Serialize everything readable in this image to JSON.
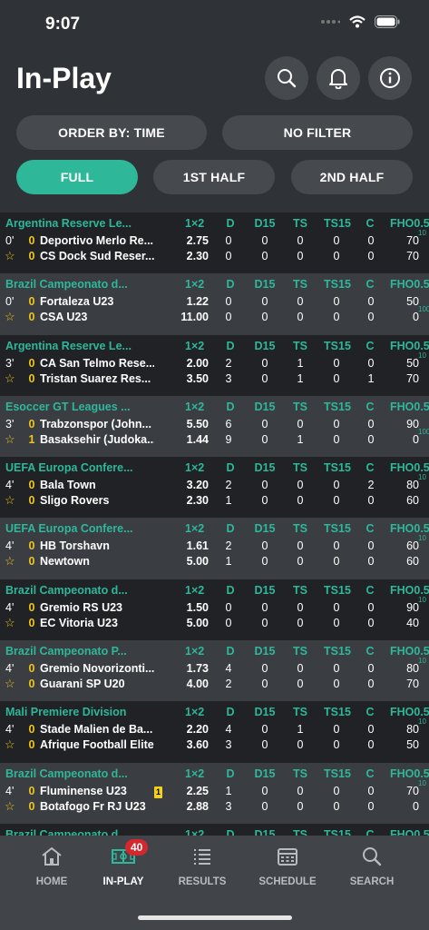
{
  "status": {
    "time": "9:07"
  },
  "header": {
    "title": "In-Play",
    "icons": [
      "search-icon",
      "bell-icon",
      "info-icon"
    ]
  },
  "filters": {
    "order_by": "ORDER BY: TIME",
    "filter": "NO FILTER"
  },
  "periods": [
    {
      "label": "FULL",
      "active": true
    },
    {
      "label": "1ST HALF",
      "active": false
    },
    {
      "label": "2ND HALF",
      "active": false
    }
  ],
  "columns": {
    "odds": "1×2",
    "d": "D",
    "d15": "D15",
    "ts": "TS",
    "ts15": "TS15",
    "c": "C",
    "fho": "FHO0.5"
  },
  "matches": [
    {
      "league": "Argentina Reserve Le...",
      "minute": "0'",
      "sup1": "10",
      "sup2": "",
      "t1": {
        "score": "0",
        "name": "Deportivo Merlo Re...",
        "odd": "2.75",
        "d": "0",
        "d15": "0",
        "ts": "0",
        "ts15": "0",
        "c": "0",
        "fho": "70"
      },
      "t2": {
        "score": "0",
        "name": "CS Dock Sud Reser...",
        "odd": "2.30",
        "d": "0",
        "d15": "0",
        "ts": "0",
        "ts15": "0",
        "c": "0",
        "fho": "70"
      }
    },
    {
      "league": "Brazil Campeonato d...",
      "minute": "0'",
      "sup1": "",
      "sup2": "100",
      "t1": {
        "score": "0",
        "name": "Fortaleza U23",
        "odd": "1.22",
        "d": "0",
        "d15": "0",
        "ts": "0",
        "ts15": "0",
        "c": "0",
        "fho": "50"
      },
      "t2": {
        "score": "0",
        "name": "CSA U23",
        "odd": "11.00",
        "d": "0",
        "d15": "0",
        "ts": "0",
        "ts15": "0",
        "c": "0",
        "fho": "0"
      }
    },
    {
      "league": "Argentina Reserve Le...",
      "minute": "3'",
      "sup1": "10",
      "sup2": "",
      "t1": {
        "score": "0",
        "name": "CA San Telmo Rese...",
        "odd": "2.00",
        "d": "2",
        "d15": "0",
        "ts": "1",
        "ts15": "0",
        "c": "0",
        "fho": "50"
      },
      "t2": {
        "score": "0",
        "name": "Tristan Suarez Res...",
        "odd": "3.50",
        "d": "3",
        "d15": "0",
        "ts": "1",
        "ts15": "0",
        "c": "1",
        "fho": "70"
      }
    },
    {
      "league": "Esoccer GT Leagues ...",
      "minute": "3'",
      "sup1": "",
      "sup2": "100",
      "t1": {
        "score": "0",
        "name": "Trabzonspor (John...",
        "odd": "5.50",
        "d": "6",
        "d15": "0",
        "ts": "0",
        "ts15": "0",
        "c": "0",
        "fho": "90"
      },
      "t2": {
        "score": "1",
        "name": "Basaksehir (Judoka...",
        "odd": "1.44",
        "d": "9",
        "d15": "0",
        "ts": "1",
        "ts15": "0",
        "c": "0",
        "fho": "0"
      }
    },
    {
      "league": "UEFA Europa Confere...",
      "minute": "4'",
      "sup1": "10",
      "sup2": "",
      "t1": {
        "score": "0",
        "name": "Bala Town",
        "odd": "3.20",
        "d": "2",
        "d15": "0",
        "ts": "0",
        "ts15": "0",
        "c": "2",
        "fho": "80"
      },
      "t2": {
        "score": "0",
        "name": "Sligo Rovers",
        "odd": "2.30",
        "d": "1",
        "d15": "0",
        "ts": "0",
        "ts15": "0",
        "c": "0",
        "fho": "60"
      }
    },
    {
      "league": "UEFA Europa Confere...",
      "minute": "4'",
      "sup1": "10",
      "sup2": "",
      "t1": {
        "score": "0",
        "name": "HB Torshavn",
        "odd": "1.61",
        "d": "2",
        "d15": "0",
        "ts": "0",
        "ts15": "0",
        "c": "0",
        "fho": "60"
      },
      "t2": {
        "score": "0",
        "name": "Newtown",
        "odd": "5.00",
        "d": "1",
        "d15": "0",
        "ts": "0",
        "ts15": "0",
        "c": "0",
        "fho": "60"
      }
    },
    {
      "league": "Brazil Campeonato d...",
      "minute": "4'",
      "sup1": "10",
      "sup2": "",
      "t1": {
        "score": "0",
        "name": "Gremio RS U23",
        "odd": "1.50",
        "d": "0",
        "d15": "0",
        "ts": "0",
        "ts15": "0",
        "c": "0",
        "fho": "90"
      },
      "t2": {
        "score": "0",
        "name": "EC Vitoria U23",
        "odd": "5.00",
        "d": "0",
        "d15": "0",
        "ts": "0",
        "ts15": "0",
        "c": "0",
        "fho": "40"
      }
    },
    {
      "league": "Brazil Campeonato P...",
      "minute": "4'",
      "sup1": "10",
      "sup2": "",
      "t1": {
        "score": "0",
        "name": "Gremio Novorizonti...",
        "odd": "1.73",
        "d": "4",
        "d15": "0",
        "ts": "0",
        "ts15": "0",
        "c": "0",
        "fho": "80"
      },
      "t2": {
        "score": "0",
        "name": "Guarani SP U20",
        "odd": "4.00",
        "d": "2",
        "d15": "0",
        "ts": "0",
        "ts15": "0",
        "c": "0",
        "fho": "70"
      }
    },
    {
      "league": "Mali Premiere Division",
      "minute": "4'",
      "sup1": "10",
      "sup2": "",
      "t1": {
        "score": "0",
        "name": "Stade Malien de Ba...",
        "odd": "2.20",
        "d": "4",
        "d15": "0",
        "ts": "1",
        "ts15": "0",
        "c": "0",
        "fho": "80"
      },
      "t2": {
        "score": "0",
        "name": "Afrique Football Elite",
        "odd": "3.60",
        "d": "3",
        "d15": "0",
        "ts": "0",
        "ts15": "0",
        "c": "0",
        "fho": "50"
      }
    },
    {
      "league": "Brazil Campeonato d...",
      "minute": "4'",
      "sup1": "10",
      "sup2": "",
      "t1": {
        "score": "0",
        "name": "Fluminense U23",
        "odd": "2.25",
        "d": "1",
        "d15": "0",
        "ts": "0",
        "ts15": "0",
        "c": "0",
        "fho": "70",
        "card": "1"
      },
      "t2": {
        "score": "0",
        "name": "Botafogo Fr RJ U23",
        "odd": "2.88",
        "d": "3",
        "d15": "0",
        "ts": "0",
        "ts15": "0",
        "c": "0",
        "fho": "0"
      }
    },
    {
      "league": "Brazil Campeonato d...",
      "minute": "",
      "sup1": "",
      "sup2": "",
      "t1": {
        "score": "",
        "name": "",
        "odd": "",
        "d": "",
        "d15": "",
        "ts": "",
        "ts15": "",
        "c": "",
        "fho": ""
      },
      "t2": {
        "score": "",
        "name": "",
        "odd": "",
        "d": "",
        "d15": "",
        "ts": "",
        "ts15": "",
        "c": "",
        "fho": ""
      }
    }
  ],
  "tabbar": {
    "badge": "40",
    "tabs": [
      {
        "label": "HOME",
        "icon": "home-icon",
        "active": false
      },
      {
        "label": "IN-PLAY",
        "icon": "pitch-icon",
        "active": true
      },
      {
        "label": "RESULTS",
        "icon": "list-icon",
        "active": false
      },
      {
        "label": "SCHEDULE",
        "icon": "calendar-icon",
        "active": false
      },
      {
        "label": "SEARCH",
        "icon": "search-icon",
        "active": false
      }
    ]
  },
  "colors": {
    "accent": "#2fb79a",
    "score": "#f0c418",
    "badge": "#d3282d"
  }
}
